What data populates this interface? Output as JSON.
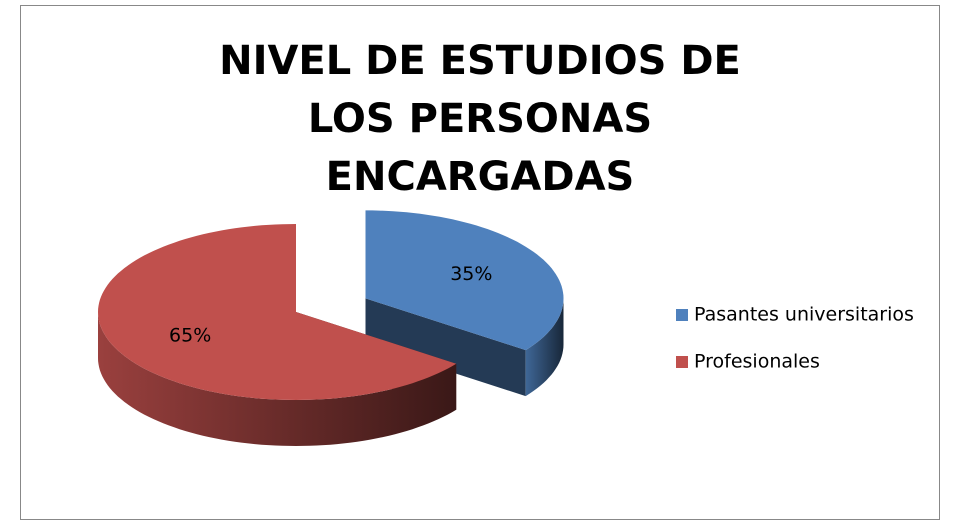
{
  "chart_data": {
    "type": "pie",
    "title": "NIVEL DE ESTUDIOS DE LOS PERSONAS ENCARGADAS",
    "categories": [
      "Pasantes universitarios",
      "Profesionales"
    ],
    "values": [
      35,
      65
    ],
    "value_labels": [
      "35%",
      "65%"
    ],
    "colors": [
      "#4f81bd",
      "#c0504d"
    ],
    "legend": "right"
  }
}
